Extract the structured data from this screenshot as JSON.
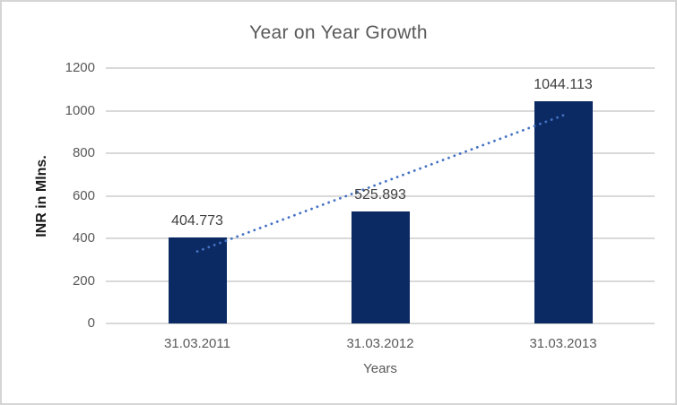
{
  "chart_data": {
    "type": "bar",
    "title": "Year on Year Growth",
    "categories": [
      "31.03.2011",
      "31.03.2012",
      "31.03.2013"
    ],
    "values": [
      404.773,
      525.893,
      1044.113
    ],
    "data_labels": [
      "404.773",
      "525.893",
      "1044.113"
    ],
    "xlabel": "Years",
    "ylabel": "INR in Mlns.",
    "ylim": [
      0,
      1200
    ],
    "ytick_step": 200,
    "yticks": [
      0,
      200,
      400,
      600,
      800,
      1000,
      1200
    ],
    "grid": true,
    "legend": "none",
    "colors": {
      "bar": "#0b2a63",
      "gridline": "#d9d9d9",
      "title_text": "#595959",
      "axis_text": "#595959",
      "data_label_text": "#404040",
      "trendline": "#4472c4",
      "frame_border": "#d5d5d5",
      "background": "#ffffff"
    },
    "trendline": {
      "type": "linear",
      "style": "dotted",
      "start_value": 338.6,
      "end_value": 977.9
    }
  }
}
